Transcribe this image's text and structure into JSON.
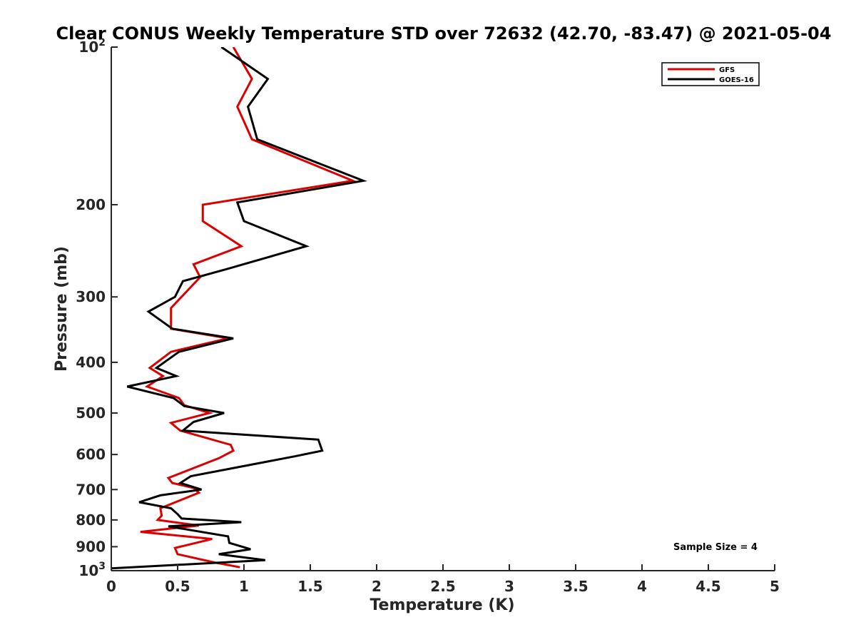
{
  "chart_data": {
    "type": "line",
    "title": "Clear CONUS Weekly Temperature STD over 72632 (42.70, -83.47) @ 2021-05-04",
    "xlabel": "Temperature (K)",
    "ylabel": "Pressure (mb)",
    "xlim": [
      0,
      5
    ],
    "ylim": [
      100,
      1000
    ],
    "y_scale": "log",
    "y_reversed": true,
    "grid": false,
    "legend_position": "top-right",
    "x_ticks": [
      0,
      0.5,
      1,
      1.5,
      2,
      2.5,
      3,
      3.5,
      4,
      4.5,
      5
    ],
    "x_tick_labels": [
      "0",
      "0.5",
      "1",
      "1.5",
      "2",
      "2.5",
      "3",
      "3.5",
      "4",
      "4.5",
      "5"
    ],
    "y_ticks": [
      100,
      200,
      300,
      400,
      500,
      600,
      700,
      800,
      900,
      1000
    ],
    "y_tick_labels": [
      "10^2",
      "200",
      "300",
      "400",
      "500",
      "600",
      "700",
      "800",
      "900",
      "10^3"
    ],
    "series": [
      {
        "name": "GFS",
        "color": "#dd0000",
        "points": [
          [
            0.92,
            100
          ],
          [
            1.06,
            115
          ],
          [
            0.95,
            130
          ],
          [
            1.06,
            150
          ],
          [
            1.82,
            180
          ],
          [
            0.69,
            200
          ],
          [
            0.69,
            215
          ],
          [
            0.98,
            240
          ],
          [
            0.62,
            260
          ],
          [
            0.67,
            275
          ],
          [
            0.45,
            315
          ],
          [
            0.45,
            345
          ],
          [
            0.88,
            360
          ],
          [
            0.45,
            382
          ],
          [
            0.29,
            410
          ],
          [
            0.39,
            425
          ],
          [
            0.27,
            445
          ],
          [
            0.51,
            468
          ],
          [
            0.55,
            483
          ],
          [
            0.74,
            500
          ],
          [
            0.45,
            522
          ],
          [
            0.52,
            540
          ],
          [
            0.9,
            575
          ],
          [
            0.92,
            590
          ],
          [
            0.81,
            610
          ],
          [
            0.43,
            665
          ],
          [
            0.46,
            680
          ],
          [
            0.62,
            695
          ],
          [
            0.66,
            710
          ],
          [
            0.37,
            760
          ],
          [
            0.38,
            785
          ],
          [
            0.35,
            800
          ],
          [
            0.66,
            820
          ],
          [
            0.22,
            843
          ],
          [
            0.76,
            870
          ],
          [
            0.48,
            905
          ],
          [
            0.5,
            930
          ],
          [
            0.78,
            965
          ],
          [
            0.97,
            985
          ]
        ]
      },
      {
        "name": "GOES-16",
        "color": "#000000",
        "points": [
          [
            0.83,
            100
          ],
          [
            1.18,
            115
          ],
          [
            1.03,
            130
          ],
          [
            1.1,
            150
          ],
          [
            1.9,
            180
          ],
          [
            0.95,
            198
          ],
          [
            1.0,
            215
          ],
          [
            1.47,
            240
          ],
          [
            0.88,
            265
          ],
          [
            0.54,
            280
          ],
          [
            0.48,
            300
          ],
          [
            0.28,
            320
          ],
          [
            0.46,
            345
          ],
          [
            0.92,
            360
          ],
          [
            0.51,
            382
          ],
          [
            0.34,
            410
          ],
          [
            0.49,
            425
          ],
          [
            0.12,
            445
          ],
          [
            0.47,
            468
          ],
          [
            0.55,
            485
          ],
          [
            0.85,
            500
          ],
          [
            0.62,
            520
          ],
          [
            0.54,
            540
          ],
          [
            1.56,
            562
          ],
          [
            1.59,
            590
          ],
          [
            1.38,
            605
          ],
          [
            0.6,
            660
          ],
          [
            0.52,
            680
          ],
          [
            0.68,
            700
          ],
          [
            0.37,
            718
          ],
          [
            0.21,
            740
          ],
          [
            0.45,
            760
          ],
          [
            0.5,
            780
          ],
          [
            0.53,
            795
          ],
          [
            0.98,
            808
          ],
          [
            0.43,
            823
          ],
          [
            0.88,
            860
          ],
          [
            0.89,
            885
          ],
          [
            1.05,
            910
          ],
          [
            0.81,
            930
          ],
          [
            1.16,
            955
          ],
          [
            0.0,
            990
          ]
        ]
      }
    ],
    "annotations": [
      "Sample Size = 4"
    ]
  }
}
